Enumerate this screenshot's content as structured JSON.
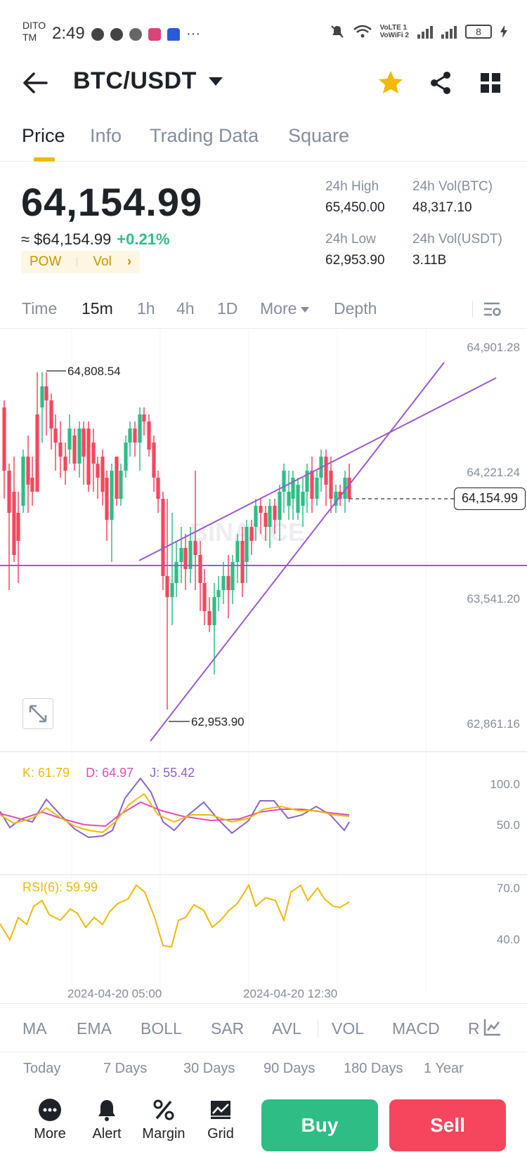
{
  "status_bar": {
    "carrier_line1": "DITO",
    "carrier_line2": "TM",
    "time": "2:49",
    "more": "···",
    "volte": "VoLTE 1",
    "vowifi": "VoWiFi 2",
    "battery": "8"
  },
  "header": {
    "pair": "BTC/USDT",
    "favorite_color": "#f0b90b"
  },
  "tabs": [
    {
      "label": "Price",
      "active": true
    },
    {
      "label": "Info",
      "active": false
    },
    {
      "label": "Trading Data",
      "active": false
    },
    {
      "label": "Square",
      "active": false
    }
  ],
  "price": {
    "last": "64,154.99",
    "fiat": "≈ $64,154.99",
    "change": "+0.21%",
    "tag_pow": "POW",
    "tag_vol": "Vol",
    "high_label": "24h High",
    "high": "65,450.00",
    "low_label": "24h Low",
    "low": "62,953.90",
    "vol_btc_label": "24h Vol(BTC)",
    "vol_btc": "48,317.10",
    "vol_usdt_label": "24h Vol(USDT)",
    "vol_usdt": "3.11B"
  },
  "intervals": [
    {
      "label": "Time",
      "active": false
    },
    {
      "label": "15m",
      "active": true
    },
    {
      "label": "1h",
      "active": false
    },
    {
      "label": "4h",
      "active": false
    },
    {
      "label": "1D",
      "active": false
    },
    {
      "label": "More",
      "active": false
    },
    {
      "label": "Depth",
      "active": false
    }
  ],
  "chart": {
    "axis_labels": [
      "64,901.28",
      "64,221.24",
      "63,541.20",
      "62,861.16"
    ],
    "last_price_tag": "64,154.99",
    "high_annotation": "64,808.54",
    "low_annotation": "62,953.90",
    "watermark": "BINANCE",
    "up_color": "#2ebd85",
    "down_color": "#f6465d",
    "trendline_color": "#9b59d0"
  },
  "kdj": {
    "k": "K: 61.79",
    "d": "D: 64.97",
    "j": "J: 55.42",
    "axis_top": "100.0",
    "axis_mid": "50.0",
    "k_color": "#f0b90b",
    "d_color": "#e04fb3",
    "j_color": "#8a63c8"
  },
  "rsi": {
    "label": "RSI(6): 59.99",
    "axis_top": "70.0",
    "axis_bottom": "40.0",
    "color": "#f0b90b"
  },
  "time_labels": [
    "2024-04-20 05:00",
    "2024-04-20 12:30"
  ],
  "indicators": [
    "MA",
    "EMA",
    "BOLL",
    "SAR",
    "AVL",
    "VOL",
    "MACD",
    "R"
  ],
  "ranges": [
    "Today",
    "7 Days",
    "30 Days",
    "90 Days",
    "180 Days",
    "1 Year"
  ],
  "bottom": {
    "more": "More",
    "alert": "Alert",
    "margin": "Margin",
    "grid": "Grid",
    "buy": "Buy",
    "sell": "Sell"
  }
}
